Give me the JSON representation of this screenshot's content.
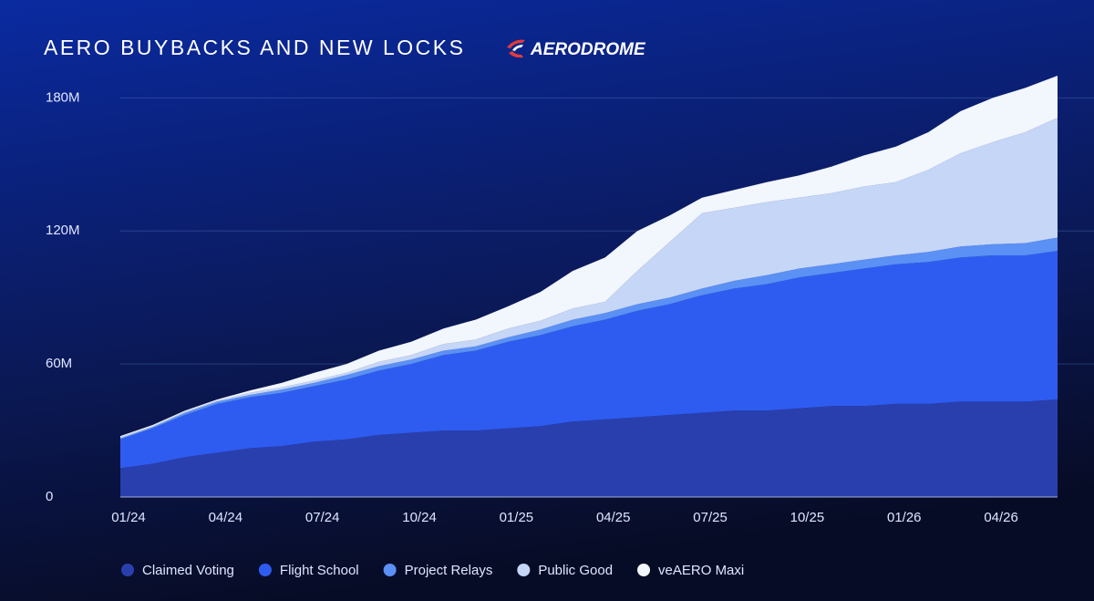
{
  "chart_data": {
    "type": "stacked_area",
    "title": "AERO BUYBACKS AND NEW LOCKS",
    "brand": "AERODROME",
    "categories": [
      "01/24",
      null,
      null,
      "04/24",
      null,
      null,
      "07/24",
      null,
      null,
      "10/24",
      null,
      null,
      "01/25",
      null,
      null,
      "04/25",
      null,
      null,
      "07/25",
      null,
      null,
      "10/25",
      null,
      null,
      "01/26",
      null,
      null,
      "04/26",
      null,
      null
    ],
    "series": [
      {
        "name": "Claimed Voting",
        "color": "#2a3fae",
        "values": [
          13,
          15,
          18,
          20,
          22,
          23,
          25,
          26,
          28,
          29,
          30,
          30,
          31,
          32,
          34,
          35,
          36,
          37,
          38,
          39,
          39,
          40,
          41,
          41,
          42,
          42,
          43,
          43,
          43,
          44
        ]
      },
      {
        "name": "Flight School",
        "color": "#2f5cf0",
        "values": [
          13,
          16,
          19,
          22,
          23,
          24,
          25,
          27,
          29,
          31,
          34,
          36,
          39,
          41,
          43,
          45,
          48,
          50,
          53,
          55,
          57,
          59,
          60,
          62,
          63,
          64,
          65,
          66,
          66,
          67
        ]
      },
      {
        "name": "Project Relays",
        "color": "#5b90f5",
        "values": [
          0.5,
          0.5,
          1,
          1,
          1,
          1.5,
          1.5,
          2,
          2,
          2,
          2,
          2,
          2,
          2.5,
          3,
          3,
          3,
          3,
          3,
          3.5,
          4,
          4,
          4,
          4,
          4,
          4.5,
          5,
          5,
          5.5,
          6
        ]
      },
      {
        "name": "Public Good",
        "color": "#c5d6f7",
        "values": [
          0.5,
          0.5,
          0.5,
          0.5,
          1,
          1,
          1,
          1,
          2,
          2,
          3,
          3,
          4,
          4,
          5,
          5,
          15,
          25,
          34,
          33,
          33,
          32,
          32,
          33,
          33,
          37,
          42,
          46,
          50,
          54
        ]
      },
      {
        "name": "veAERO Maxi",
        "color": "#f2f6fd",
        "values": [
          0.5,
          0.5,
          0.5,
          0.5,
          1,
          2,
          3.5,
          4,
          5,
          6,
          7,
          9,
          10,
          13,
          17,
          20,
          18,
          12,
          7,
          8,
          9,
          10,
          12,
          14,
          16,
          17,
          19,
          20,
          20,
          19
        ]
      }
    ],
    "ylim": [
      0,
      190
    ],
    "yticks": [
      0,
      {
        "value": 60,
        "label": "60M"
      },
      {
        "value": 120,
        "label": "120M"
      },
      {
        "value": 180,
        "label": "180M"
      }
    ],
    "grid": true,
    "legend": "bottom"
  }
}
